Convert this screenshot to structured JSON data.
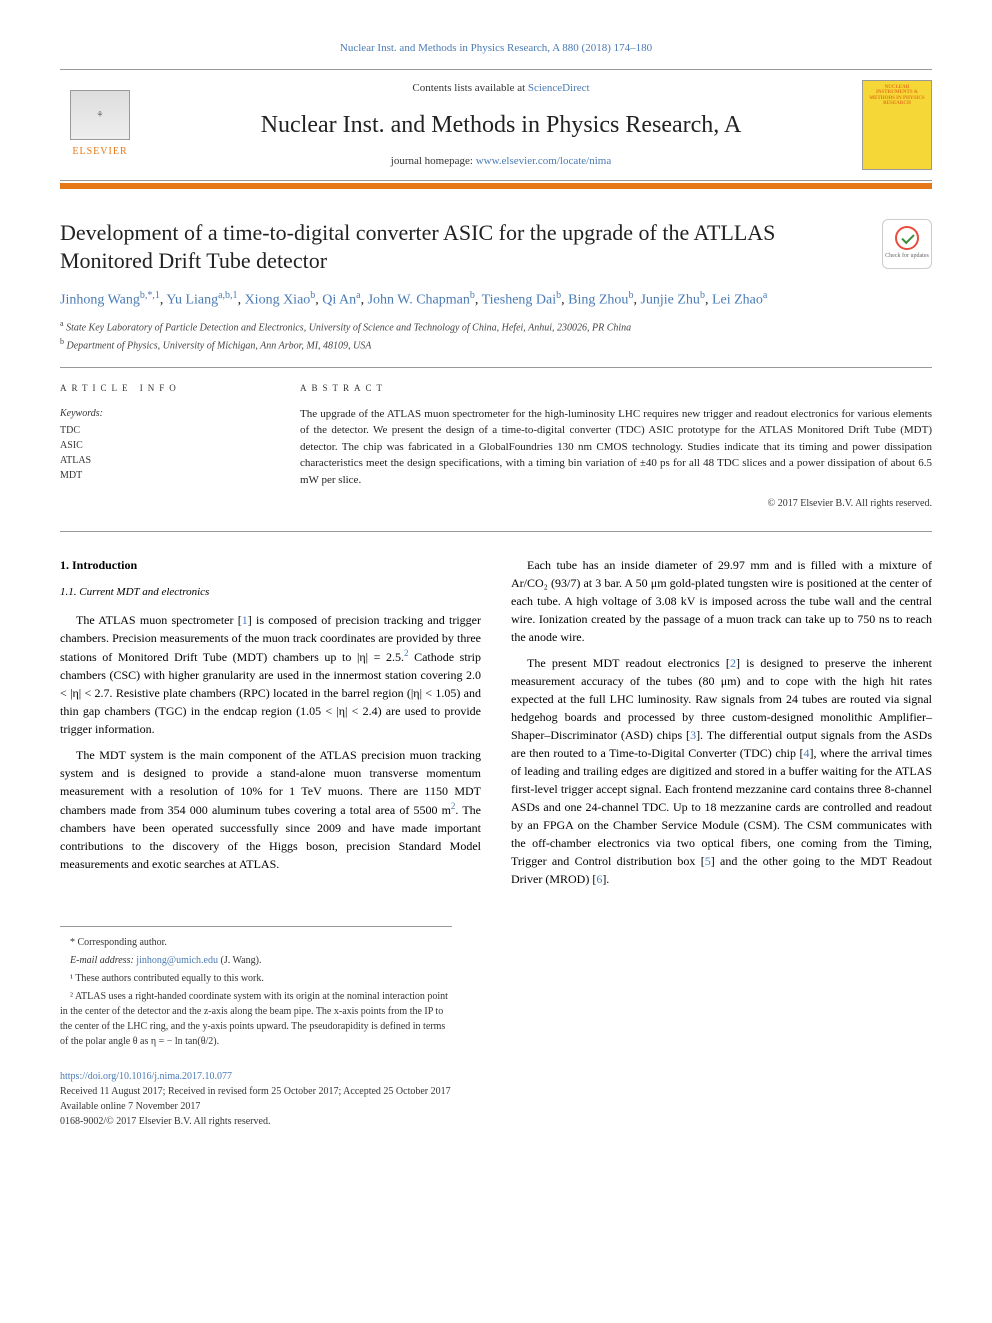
{
  "header": {
    "citation": "Nuclear Inst. and Methods in Physics Research, A 880 (2018) 174–180",
    "contents_prefix": "Contents lists available at ",
    "contents_link": "ScienceDirect",
    "journal": "Nuclear Inst. and Methods in Physics Research, A",
    "homepage_prefix": "journal homepage: ",
    "homepage_link": "www.elsevier.com/locate/nima",
    "publisher": "ELSEVIER",
    "cover_text": "NUCLEAR INSTRUMENTS & METHODS IN PHYSICS RESEARCH"
  },
  "article": {
    "title": "Development of a time-to-digital converter ASIC for the upgrade of the ATLLAS Monitored Drift Tube detector",
    "check_updates": "Check for updates"
  },
  "authors": {
    "a1_name": "Jinhong Wang",
    "a1_sup": "b,*,1",
    "a2_name": "Yu Liang",
    "a2_sup": "a,b,1",
    "a3_name": "Xiong Xiao",
    "a3_sup": "b",
    "a4_name": "Qi An",
    "a4_sup": "a",
    "a5_name": "John W. Chapman",
    "a5_sup": "b",
    "a6_name": "Tiesheng Dai",
    "a6_sup": "b",
    "a7_name": "Bing Zhou",
    "a7_sup": "b",
    "a8_name": "Junjie Zhu",
    "a8_sup": "b",
    "a9_name": "Lei Zhao",
    "a9_sup": "a"
  },
  "affiliations": {
    "a": "State Key Laboratory of Particle Detection and Electronics, University of Science and Technology of China, Hefei, Anhui, 230026, PR China",
    "b": "Department of Physics, University of Michigan, Ann Arbor, MI, 48109, USA"
  },
  "info": {
    "header": "ARTICLE INFO",
    "kw_label": "Keywords:",
    "keywords": [
      "TDC",
      "ASIC",
      "ATLAS",
      "MDT"
    ]
  },
  "abstract": {
    "header": "ABSTRACT",
    "text": "The upgrade of the ATLAS muon spectrometer for the high-luminosity LHC requires new trigger and readout electronics for various elements of the detector. We present the design of a time-to-digital converter (TDC) ASIC prototype for the ATLAS Monitored Drift Tube (MDT) detector. The chip was fabricated in a GlobalFoundries 130 nm CMOS technology. Studies indicate that its timing and power dissipation characteristics meet the design specifications, with a timing bin variation of ±40 ps for all 48 TDC slices and a power dissipation of about 6.5 mW per slice.",
    "copyright": "© 2017 Elsevier B.V. All rights reserved."
  },
  "body": {
    "sec1": "1. Introduction",
    "sec11": "1.1. Current MDT and electronics",
    "p1": "The ATLAS muon spectrometer [1] is composed of precision tracking and trigger chambers. Precision measurements of the muon track coordinates are provided by three stations of Monitored Drift Tube (MDT) chambers up to |η| = 2.5.² Cathode strip chambers (CSC) with higher granularity are used in the innermost station covering 2.0 < |η| < 2.7. Resistive plate chambers (RPC) located in the barrel region (|η| < 1.05) and thin gap chambers (TGC) in the endcap region (1.05 < |η| < 2.4) are used to provide trigger information.",
    "p2": "The MDT system is the main component of the ATLAS precision muon tracking system and is designed to provide a stand-alone muon transverse momentum measurement with a resolution of 10% for 1 TeV muons. There are 1150 MDT chambers made from 354 000 aluminum tubes covering a total area of 5500 m². The chambers have been operated successfully since 2009 and have made important contributions to the discovery of the Higgs boson, precision Standard Model measurements and exotic searches at ATLAS.",
    "p3": "Each tube has an inside diameter of 29.97 mm and is filled with a mixture of Ar/CO₂ (93/7) at 3 bar. A 50 μm gold-plated tungsten wire is positioned at the center of each tube. A high voltage of 3.08 kV is imposed across the tube wall and the central wire. Ionization created by the passage of a muon track can take up to 750 ns to reach the anode wire.",
    "p4": "The present MDT readout electronics [2] is designed to preserve the inherent measurement accuracy of the tubes (80 μm) and to cope with the high hit rates expected at the full LHC luminosity. Raw signals from 24 tubes are routed via signal hedgehog boards and processed by three custom-designed monolithic Amplifier–Shaper–Discriminator (ASD) chips [3]. The differential output signals from the ASDs are then routed to a Time-to-Digital Converter (TDC) chip [4], where the arrival times of leading and trailing edges are digitized and stored in a buffer waiting for the ATLAS first-level trigger accept signal. Each frontend mezzanine card contains three 8-channel ASDs and one 24-channel TDC. Up to 18 mezzanine cards are controlled and readout by an FPGA on the Chamber Service Module (CSM). The CSM communicates with the off-chamber electronics via two optical fibers, one coming from the Timing, Trigger and Control distribution box [5] and the other going to the MDT Readout Driver (MROD) [6]."
  },
  "footnotes": {
    "corr": "* Corresponding author.",
    "email_label": "E-mail address: ",
    "email": "jinhong@umich.edu",
    "email_who": " (J. Wang).",
    "fn1": "¹ These authors contributed equally to this work.",
    "fn2": "² ATLAS uses a right-handed coordinate system with its origin at the nominal interaction point in the center of the detector and the z-axis along the beam pipe. The x-axis points from the IP to the center of the LHC ring, and the y-axis points upward. The pseudorapidity is defined in terms of the polar angle θ as η = − ln tan(θ/2)."
  },
  "doi": {
    "link": "https://doi.org/10.1016/j.nima.2017.10.077",
    "received": "Received 11 August 2017; Received in revised form 25 October 2017; Accepted 25 October 2017",
    "online": "Available online 7 November 2017",
    "issn": "0168-9002/© 2017 Elsevier B.V. All rights reserved."
  },
  "colors": {
    "link": "#4a7bb5",
    "orange": "#e67817",
    "cover": "#f5d838"
  }
}
